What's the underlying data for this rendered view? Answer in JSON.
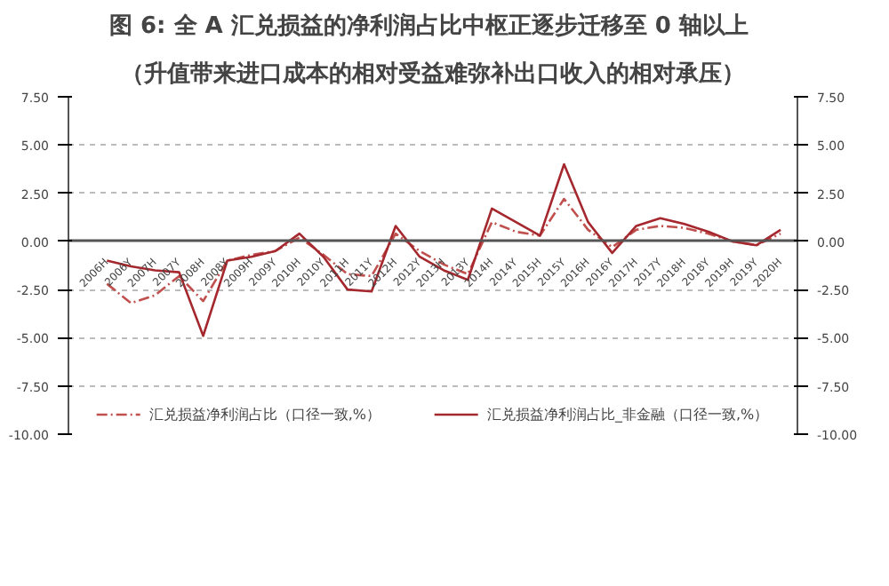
{
  "chart_data": {
    "type": "line",
    "title": "图 6:  全 A 汇兑损益的净利润占比中枢正逐步迁移至 0 轴以上",
    "subtitle": "（升值带来进口成本的相对受益难弥补出口收入的相对承压）",
    "categories": [
      "2006H",
      "2006Y",
      "2007H",
      "2007Y",
      "2008H",
      "2008Y",
      "2009H",
      "2009Y",
      "2010H",
      "2010Y",
      "2011H",
      "2011Y",
      "2012H",
      "2012Y",
      "2013H",
      "2013Y",
      "2014H",
      "2014Y",
      "2015H",
      "2015Y",
      "2016H",
      "2016Y",
      "2017H",
      "2017Y",
      "2018H",
      "2018Y",
      "2019H",
      "2019Y",
      "2020H"
    ],
    "series": [
      {
        "name": "汇兑损益净利润占比（口径一致,%）",
        "color": "#c0504d",
        "line_style": "dashed",
        "values": [
          -2.2,
          -3.2,
          -2.8,
          -1.8,
          -3.1,
          -1.0,
          -0.7,
          -0.5,
          0.2,
          -0.7,
          -1.7,
          -1.8,
          0.4,
          -0.5,
          -1.2,
          -1.7,
          1.0,
          0.5,
          0.3,
          2.2,
          0.6,
          -0.3,
          0.6,
          0.8,
          0.7,
          0.4,
          0.0,
          -0.2,
          0.4
        ]
      },
      {
        "name": "汇兑损益净利润占比_非金融（口径一致,%）",
        "color": "#a4282e",
        "line_style": "solid",
        "values": [
          -1.0,
          -1.3,
          -1.5,
          -1.6,
          -4.9,
          -1.0,
          -0.8,
          -0.5,
          0.4,
          -0.8,
          -2.5,
          -2.6,
          0.8,
          -0.8,
          -1.5,
          -2.0,
          1.7,
          1.0,
          0.3,
          4.0,
          1.0,
          -0.6,
          0.8,
          1.2,
          0.9,
          0.5,
          0.0,
          -0.2,
          0.6
        ]
      }
    ],
    "ylim": [
      -10,
      7.5
    ],
    "yticks": [
      {
        "value": -10,
        "label": "-10.00"
      },
      {
        "value": -7.5,
        "label": "-7.50"
      },
      {
        "value": -5,
        "label": "-5.00"
      },
      {
        "value": -2.5,
        "label": "-2.50"
      },
      {
        "value": 0,
        "label": "0.00"
      },
      {
        "value": 2.5,
        "label": "2.50"
      },
      {
        "value": 5,
        "label": "5.00"
      },
      {
        "value": 7.5,
        "label": "7.50"
      }
    ],
    "y2lim": [
      -10,
      7.5
    ],
    "y2ticks": [
      {
        "value": -10,
        "label": "-10.00"
      },
      {
        "value": -7.5,
        "label": "-7.50"
      },
      {
        "value": -5,
        "label": "-5.00"
      },
      {
        "value": -2.5,
        "label": "-2.50"
      },
      {
        "value": 0,
        "label": "0.00"
      },
      {
        "value": 2.5,
        "label": "2.50"
      },
      {
        "value": 5,
        "label": "5.00"
      },
      {
        "value": 7.5,
        "label": "7.50"
      }
    ],
    "grid": "y",
    "legend": "bottom",
    "marker": "none"
  }
}
